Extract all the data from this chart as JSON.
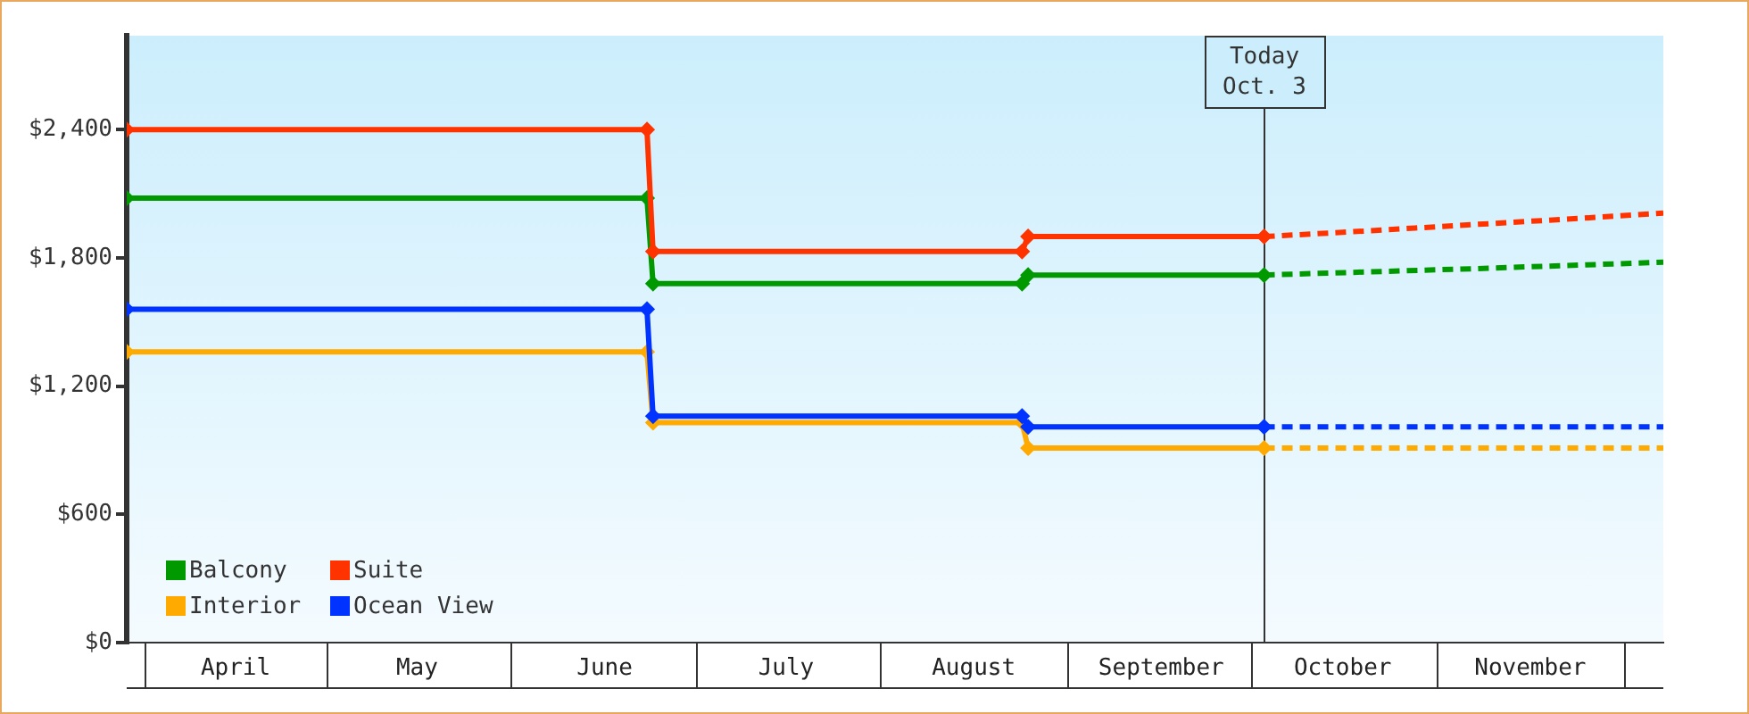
{
  "chart_data": {
    "type": "line",
    "xlim": [
      "--03-29",
      "--12-08"
    ],
    "xticks": [
      {
        "value": "--04-16",
        "label": "April"
      },
      {
        "value": "--05-16",
        "label": "May"
      },
      {
        "value": "--06-16",
        "label": "June"
      },
      {
        "value": "--07-16",
        "label": "July"
      },
      {
        "value": "--08-16",
        "label": "August"
      },
      {
        "value": "--09-16",
        "label": "September"
      },
      {
        "value": "--10-16",
        "label": "October"
      },
      {
        "value": "--11-16",
        "label": "November"
      }
    ],
    "ylim": [
      0,
      2840
    ],
    "yticks": [
      {
        "value": 0,
        "label": "$0"
      },
      {
        "value": 600,
        "label": "$600"
      },
      {
        "value": 1200,
        "label": "$1,200"
      },
      {
        "value": 1800,
        "label": "$1,800"
      },
      {
        "value": 2400,
        "label": "$2,400"
      }
    ],
    "grid": false,
    "legend": "bottom left",
    "ref_lines": [
      {
        "axis": "x",
        "value": "--10-03",
        "label": "Today\nOct. 3"
      }
    ],
    "series": [
      {
        "name": "Balcony",
        "color": "#009900",
        "marker": "diamond",
        "line_style": "solid",
        "x": [
          "--03-29",
          "--06-23",
          "--06-24",
          "--08-24",
          "--08-25",
          "--10-03"
        ],
        "values": [
          2080,
          2080,
          1680,
          1680,
          1720,
          1720
        ]
      },
      {
        "name": "Suite",
        "color": "#ff3300",
        "marker": "diamond",
        "line_style": "solid",
        "x": [
          "--03-29",
          "--06-23",
          "--06-24",
          "--08-24",
          "--08-25",
          "--10-03"
        ],
        "values": [
          2400,
          2400,
          1830,
          1830,
          1900,
          1900
        ]
      },
      {
        "name": "Interior",
        "color": "#ffaa00",
        "marker": "diamond",
        "line_style": "solid",
        "x": [
          "--03-29",
          "--06-23",
          "--06-24",
          "--08-24",
          "--08-25",
          "--10-03"
        ],
        "values": [
          1360,
          1360,
          1030,
          1030,
          910,
          910
        ]
      },
      {
        "name": "Ocean View",
        "color": "#0033ff",
        "marker": "diamond",
        "line_style": "solid",
        "x": [
          "--03-29",
          "--06-23",
          "--06-24",
          "--08-24",
          "--08-25",
          "--10-03"
        ],
        "values": [
          1560,
          1560,
          1060,
          1060,
          1010,
          1010
        ]
      },
      {
        "color": "#009900",
        "marker": "none",
        "line_style": "dashed",
        "x": [
          "--10-03",
          "--11-07",
          "--12-08"
        ],
        "values": [
          1720,
          1750,
          1780
        ]
      },
      {
        "color": "#ff3300",
        "marker": "none",
        "line_style": "dashed",
        "x": [
          "--10-03",
          "--10-16",
          "--10-28",
          "--11-15",
          "--11-27",
          "--12-08"
        ],
        "values": [
          1900,
          1920,
          1940,
          1970,
          1990,
          2010
        ]
      },
      {
        "color": "#ffaa00",
        "marker": "none",
        "line_style": "dashed",
        "x": [
          "--10-03",
          "--12-08"
        ],
        "values": [
          910,
          910
        ]
      },
      {
        "color": "#0033ff",
        "marker": "none",
        "line_style": "dashed",
        "x": [
          "--10-03",
          "--12-08"
        ],
        "values": [
          1010,
          1010
        ]
      }
    ]
  }
}
